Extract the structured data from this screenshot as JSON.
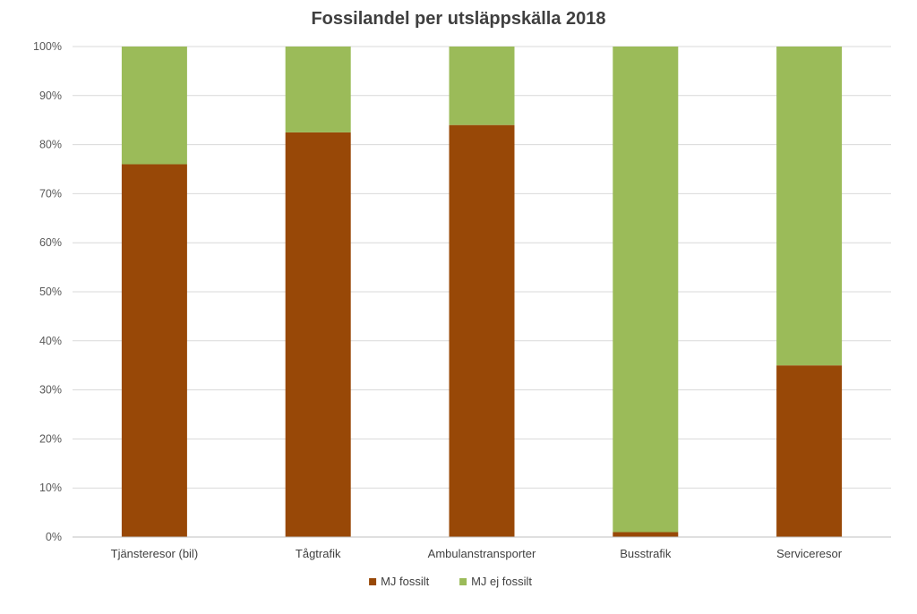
{
  "chart_data": {
    "type": "bar",
    "stacked": true,
    "title": "Fossilandel per utsläppskälla 2018",
    "xlabel": "",
    "ylabel": "",
    "ylim": [
      0,
      100
    ],
    "y_ticks": [
      "0%",
      "10%",
      "20%",
      "30%",
      "40%",
      "50%",
      "60%",
      "70%",
      "80%",
      "90%",
      "100%"
    ],
    "y_unit": "%",
    "grid": true,
    "legend_position": "bottom",
    "categories": [
      "Tjänsteresor (bil)",
      "Tågtrafik",
      "Ambulanstransporter",
      "Busstrafik",
      "Serviceresor"
    ],
    "series": [
      {
        "name": "MJ fossilt",
        "color": "#984807",
        "values": [
          76,
          82.5,
          84,
          1,
          35
        ]
      },
      {
        "name": "MJ ej fossilt",
        "color": "#9bbb59",
        "values": [
          24,
          17.5,
          16,
          99,
          65
        ]
      }
    ]
  }
}
